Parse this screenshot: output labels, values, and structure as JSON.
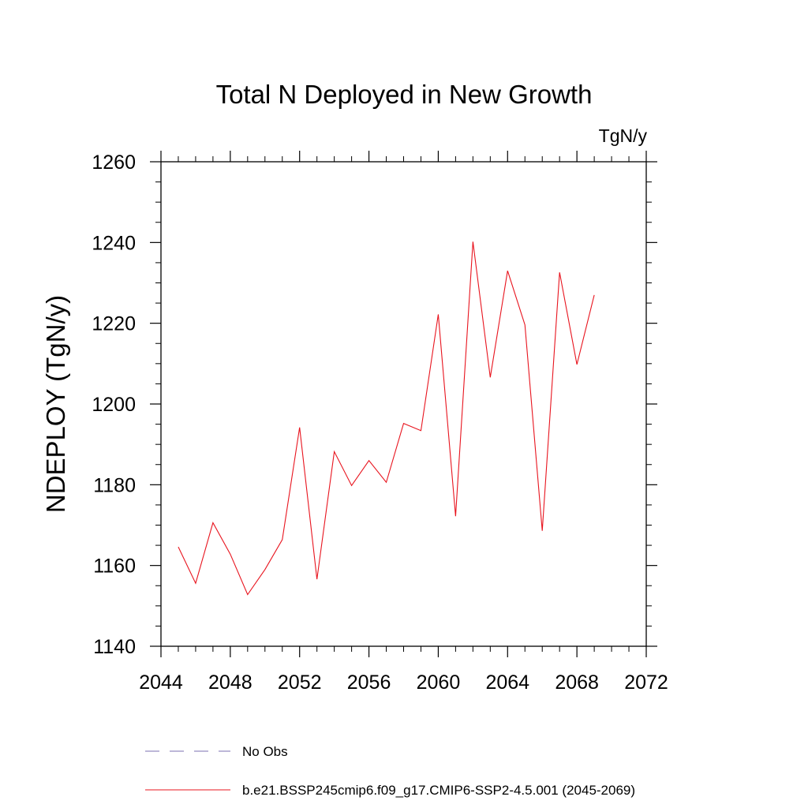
{
  "chart_data": {
    "type": "line",
    "title": "Total N Deployed in New Growth",
    "units": "TgN/y",
    "ylabel": "NDEPLOY  (TgN/y)",
    "xlabel": "",
    "xlim": [
      2044,
      2072
    ],
    "ylim": [
      1140,
      1260
    ],
    "x_ticks": [
      2044,
      2048,
      2052,
      2056,
      2060,
      2064,
      2068,
      2072
    ],
    "y_ticks": [
      1140,
      1160,
      1180,
      1200,
      1220,
      1240,
      1260
    ],
    "grid": false,
    "legend_position": "bottom",
    "legend": [
      {
        "label": "No Obs",
        "style": "dashed",
        "color": "#7b6fb0"
      },
      {
        "label": "b.e21.BSSP245cmip6.f09_g17.CMIP6-SSP2-4.5.001 (2045-2069)",
        "style": "solid",
        "color": "#e8141e"
      }
    ],
    "series": [
      {
        "color": "#e8141e",
        "x": [
          2045,
          2046,
          2047,
          2048,
          2049,
          2050,
          2051,
          2052,
          2053,
          2054,
          2055,
          2056,
          2057,
          2058,
          2059,
          2060,
          2061,
          2062,
          2063,
          2064,
          2065,
          2066,
          2067,
          2068,
          2069
        ],
        "values": [
          1164.6,
          1155.6,
          1170.6,
          1162.8,
          1152.8,
          1159.0,
          1166.4,
          1194.2,
          1156.6,
          1188.2,
          1179.8,
          1186.0,
          1180.6,
          1195.2,
          1193.4,
          1222.2,
          1172.2,
          1240.2,
          1206.6,
          1233.0,
          1219.6,
          1168.6,
          1232.6,
          1209.8,
          1227.0
        ]
      }
    ]
  }
}
